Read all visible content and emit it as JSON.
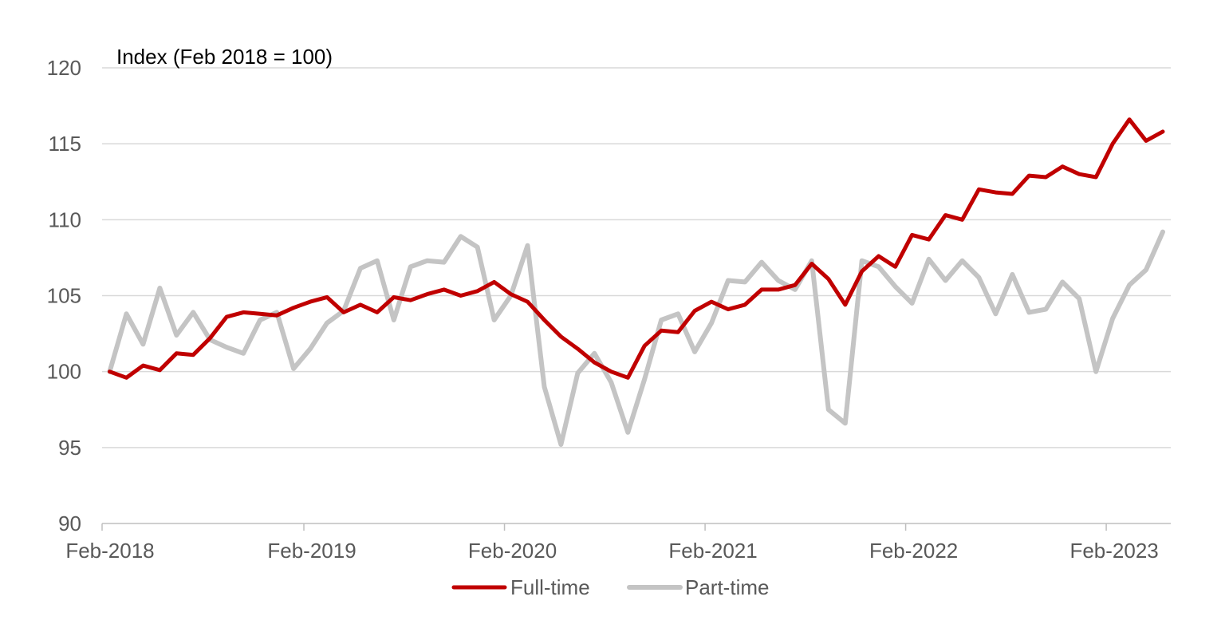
{
  "chart_data": {
    "type": "line",
    "ylabel": "Index (Feb 2018 = 100)",
    "xlabel": "",
    "ylim": [
      90,
      120
    ],
    "y_ticks": [
      "90",
      "95",
      "100",
      "105",
      "110",
      "115",
      "120"
    ],
    "x_tick_labels": [
      "Feb-2018",
      "Feb-2019",
      "Feb-2020",
      "Feb-2021",
      "Feb-2022",
      "Feb-2023"
    ],
    "x_tick_months": [
      0,
      12,
      24,
      36,
      48,
      60
    ],
    "x_range_months": [
      0,
      63
    ],
    "grid": "horizontal",
    "legend_position": "bottom",
    "series": [
      {
        "name": "Full-time",
        "color": "#c00000",
        "values": [
          100.0,
          99.6,
          100.4,
          100.1,
          101.2,
          101.1,
          102.2,
          103.6,
          103.9,
          103.8,
          103.7,
          104.2,
          104.6,
          104.9,
          103.9,
          104.4,
          103.9,
          104.9,
          104.7,
          105.1,
          105.4,
          105.0,
          105.3,
          105.9,
          105.1,
          104.6,
          103.4,
          102.3,
          101.5,
          100.6,
          100.0,
          99.6,
          101.7,
          102.7,
          102.6,
          104.0,
          104.6,
          104.1,
          104.4,
          105.4,
          105.4,
          105.7,
          107.1,
          106.1,
          104.4,
          106.6,
          107.6,
          106.9,
          109.0,
          108.7,
          110.3,
          110.0,
          112.0,
          111.8,
          111.7,
          112.9,
          112.8,
          113.5,
          113.0,
          112.8,
          115.0,
          116.6,
          115.2,
          115.8
        ],
        "line_width": 5
      },
      {
        "name": "Part-time",
        "color": "#c4c4c4",
        "values": [
          100.0,
          103.8,
          101.8,
          105.5,
          102.4,
          103.9,
          102.1,
          101.6,
          101.2,
          103.4,
          103.9,
          100.2,
          101.5,
          103.2,
          104.0,
          106.8,
          107.3,
          103.4,
          106.9,
          107.3,
          107.2,
          108.9,
          108.2,
          103.4,
          105.0,
          108.3,
          99.0,
          95.2,
          99.9,
          101.2,
          99.3,
          96.0,
          99.5,
          103.4,
          103.8,
          101.3,
          103.2,
          106.0,
          105.9,
          107.2,
          106.0,
          105.4,
          107.3,
          97.5,
          96.6,
          107.3,
          106.9,
          105.6,
          104.5,
          107.4,
          106.0,
          107.3,
          106.2,
          103.8,
          106.4,
          103.9,
          104.1,
          105.9,
          104.8,
          100.0,
          103.5,
          105.7,
          106.7,
          109.2
        ],
        "line_width": 6
      }
    ]
  }
}
